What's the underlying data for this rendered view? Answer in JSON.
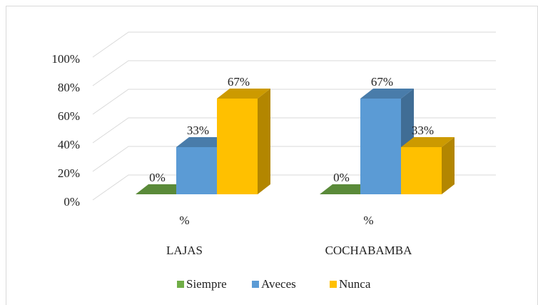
{
  "chart_data": {
    "type": "bar3d",
    "categories": [
      "%",
      "%"
    ],
    "groups": [
      "LAJAS",
      "COCHABAMBA"
    ],
    "series": [
      {
        "name": "Siempre",
        "color": "#70AD47",
        "values": [
          0,
          0
        ],
        "value_labels": [
          "0%",
          "0%"
        ]
      },
      {
        "name": "Aveces",
        "color": "#5B9BD5",
        "values": [
          33,
          67
        ],
        "value_labels": [
          "33%",
          "67%"
        ]
      },
      {
        "name": "Nunca",
        "color": "#FFC000",
        "values": [
          67,
          33
        ],
        "value_labels": [
          "67%",
          "33%"
        ]
      }
    ],
    "ylim": [
      0,
      100
    ],
    "yticks": [
      {
        "value": 0,
        "label": "0%"
      },
      {
        "value": 20,
        "label": "20%"
      },
      {
        "value": 40,
        "label": "40%"
      },
      {
        "value": 60,
        "label": "60%"
      },
      {
        "value": 80,
        "label": "80%"
      },
      {
        "value": 100,
        "label": "100%"
      }
    ],
    "grid": true,
    "legend": "bottom"
  }
}
